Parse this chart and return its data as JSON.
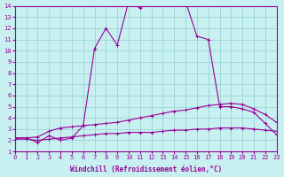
{
  "xlabel": "Windchill (Refroidissement éolien,°C)",
  "bg_color": "#c8f0f0",
  "grid_color": "#a0d8d8",
  "line_color": "#990099",
  "xlim": [
    0,
    23
  ],
  "ylim": [
    1,
    14
  ],
  "xticks": [
    0,
    1,
    2,
    3,
    4,
    5,
    6,
    7,
    8,
    9,
    10,
    11,
    12,
    13,
    14,
    15,
    16,
    17,
    18,
    19,
    20,
    21,
    22,
    23
  ],
  "yticks": [
    1,
    2,
    3,
    4,
    5,
    6,
    7,
    8,
    9,
    10,
    11,
    12,
    13,
    14
  ],
  "curve1_x": [
    0,
    1,
    2,
    3,
    4,
    5,
    6,
    7,
    8,
    9,
    10,
    11,
    12,
    13,
    14,
    15,
    16,
    17,
    18,
    19,
    20,
    21,
    22,
    23
  ],
  "curve1_y": [
    2.1,
    2.1,
    2.0,
    2.1,
    2.2,
    2.3,
    2.4,
    2.5,
    2.6,
    2.6,
    2.7,
    2.7,
    2.7,
    2.8,
    2.9,
    2.9,
    3.0,
    3.0,
    3.1,
    3.1,
    3.1,
    3.0,
    2.9,
    2.8
  ],
  "curve2_x": [
    0,
    1,
    2,
    3,
    4,
    5,
    6,
    7,
    8,
    9,
    10,
    11,
    12,
    13,
    14,
    15,
    16,
    17,
    18,
    19,
    20,
    21,
    22,
    23
  ],
  "curve2_y": [
    2.2,
    2.2,
    2.3,
    2.8,
    3.1,
    3.2,
    3.3,
    3.4,
    3.5,
    3.6,
    3.8,
    4.0,
    4.2,
    4.4,
    4.6,
    4.7,
    4.9,
    5.1,
    5.2,
    5.3,
    5.2,
    4.8,
    4.3,
    3.6
  ],
  "curve3_x": [
    0,
    1,
    2,
    3,
    4,
    5,
    6,
    7,
    8,
    9,
    10,
    11,
    12,
    13,
    14,
    15,
    16,
    17,
    18,
    19,
    20,
    21,
    22,
    23
  ],
  "curve3_y": [
    2.2,
    2.2,
    1.8,
    2.4,
    2.0,
    2.2,
    3.3,
    10.2,
    12.0,
    10.5,
    14.4,
    13.8,
    14.4,
    14.3,
    14.4,
    14.4,
    11.3,
    11.0,
    5.0,
    5.0,
    4.8,
    4.5,
    3.5,
    2.5
  ]
}
